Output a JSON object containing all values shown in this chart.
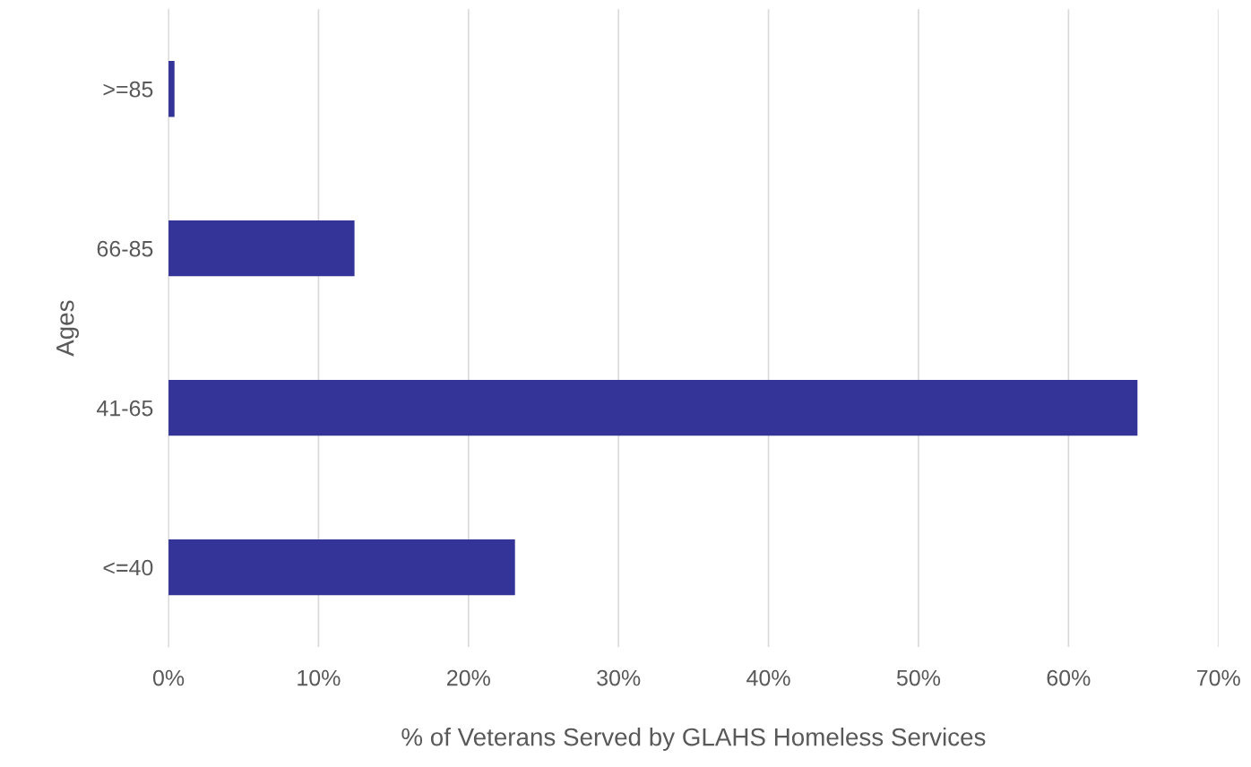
{
  "chart_data": {
    "type": "bar",
    "orientation": "horizontal",
    "xlabel": "% of Veterans Served by GLAHS Homeless Services",
    "ylabel": "Ages",
    "categories": [
      ">=85",
      "66-85",
      "41-65",
      "<=40"
    ],
    "values": [
      0.4,
      12.4,
      64.6,
      23.1
    ],
    "color": "#343398",
    "xlim": [
      0,
      70
    ],
    "xticks": [
      {
        "value": 0,
        "label": "0%"
      },
      {
        "value": 10,
        "label": "10%"
      },
      {
        "value": 20,
        "label": "20%"
      },
      {
        "value": 30,
        "label": "30%"
      },
      {
        "value": 40,
        "label": "40%"
      },
      {
        "value": 50,
        "label": "50%"
      },
      {
        "value": 60,
        "label": "60%"
      },
      {
        "value": 70,
        "label": "70%"
      }
    ],
    "grid": "x",
    "legend": false
  }
}
